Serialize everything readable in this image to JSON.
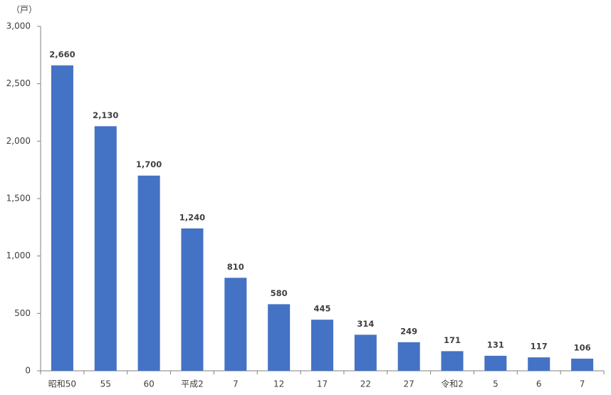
{
  "chart_data": {
    "type": "bar",
    "unit": "（戸）",
    "categories": [
      "昭和50",
      "55",
      "60",
      "平成2",
      "7",
      "12",
      "17",
      "22",
      "27",
      "令和2",
      "5",
      "6",
      "7"
    ],
    "values": [
      2660,
      2130,
      1700,
      1240,
      810,
      580,
      445,
      314,
      249,
      171,
      131,
      117,
      106
    ],
    "value_labels": [
      "2,660",
      "2,130",
      "1,700",
      "1,240",
      "810",
      "580",
      "445",
      "314",
      "249",
      "171",
      "131",
      "117",
      "106"
    ],
    "color": "#4472c4",
    "ylim": [
      0,
      3000
    ],
    "yticks": [
      0,
      500,
      {
        "value": 1000,
        "label": "1,000"
      },
      {
        "value": 1500,
        "label": "1,500"
      },
      {
        "value": 2000,
        "label": "2,000"
      },
      {
        "value": 2500,
        "label": "2,500"
      },
      {
        "value": 3000,
        "label": "3,000"
      }
    ],
    "grid": false
  }
}
